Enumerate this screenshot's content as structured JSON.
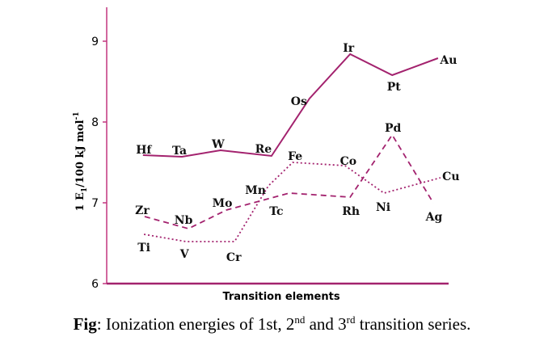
{
  "chart_data": {
    "type": "line",
    "title": "",
    "xlabel": "Transition elements",
    "ylabel": "1 E1/100 kJ mol-1",
    "ylabel_parts": {
      "main": "1 E",
      "sub": "1",
      "rest": "/100 kJ mol",
      "sup": "-1"
    },
    "ylim": [
      6,
      9.3
    ],
    "xlim": [
      0,
      10
    ],
    "yticks": [
      6,
      7,
      8,
      9
    ],
    "grid": false,
    "series": [
      {
        "name": "1st transition series",
        "style": "dotted",
        "points": [
          {
            "label": "Ti",
            "x": 1.09,
            "y": 6.61
          },
          {
            "label": "V",
            "x": 2.32,
            "y": 6.52
          },
          {
            "label": "Cr",
            "x": 3.74,
            "y": 6.52
          },
          {
            "label": "Mn",
            "x": 4.73,
            "y": 7.21
          },
          {
            "label": "Fe",
            "x": 5.44,
            "y": 7.5
          },
          {
            "label": "Co",
            "x": 6.97,
            "y": 7.46
          },
          {
            "label": "Ni",
            "x": 8.11,
            "y": 7.12
          },
          {
            "label": "Cu",
            "x": 9.76,
            "y": 7.31
          }
        ]
      },
      {
        "name": "2nd transition series",
        "style": "dashed",
        "points": [
          {
            "label": "Zr",
            "x": 1.11,
            "y": 6.83
          },
          {
            "label": "Nb",
            "x": 2.39,
            "y": 6.68
          },
          {
            "label": "Mo",
            "x": 3.5,
            "y": 6.91
          },
          {
            "label": "Tc",
            "x": 5.34,
            "y": 7.12
          },
          {
            "label": "Rh",
            "x": 7.12,
            "y": 7.07
          },
          {
            "label": "Pd",
            "x": 8.35,
            "y": 7.84
          },
          {
            "label": "Ag",
            "x": 9.55,
            "y": 7.0
          }
        ]
      },
      {
        "name": "3rd transition series",
        "style": "solid",
        "points": [
          {
            "label": "Hf",
            "x": 1.06,
            "y": 7.59
          },
          {
            "label": "Ta",
            "x": 2.2,
            "y": 7.57
          },
          {
            "label": "W",
            "x": 3.33,
            "y": 7.65
          },
          {
            "label": "Re",
            "x": 4.82,
            "y": 7.58
          },
          {
            "label": "Os",
            "x": 5.93,
            "y": 8.29
          },
          {
            "label": "Ir",
            "x": 7.12,
            "y": 8.84
          },
          {
            "label": "Pt",
            "x": 8.35,
            "y": 8.58
          },
          {
            "label": "Au",
            "x": 9.69,
            "y": 8.79
          }
        ]
      }
    ],
    "colors": {
      "line": "#a3226e",
      "axis": "#c2367f",
      "text": "#000000"
    }
  },
  "caption": {
    "prefix": "Fig",
    "text1": ": Ionization energies of 1st, 2",
    "sup1": "nd",
    "text2": " and 3",
    "sup2": "rd",
    "text3": " transition series."
  }
}
